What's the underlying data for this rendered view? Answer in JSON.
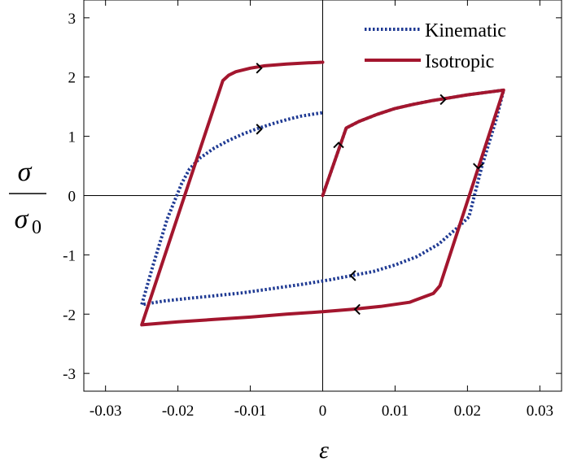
{
  "chart_data": {
    "type": "line",
    "title": "",
    "xlabel": "ε",
    "ylabel_numerator": "σ",
    "ylabel_denominator": "σ",
    "ylabel_denominator_subscript": "0",
    "xlim": [
      -0.033,
      0.033
    ],
    "ylim": [
      -3.3,
      3.3
    ],
    "xticks": [
      -0.03,
      -0.02,
      -0.01,
      0,
      0.01,
      0.02,
      0.03
    ],
    "xtick_labels": [
      "-0.03",
      "-0.02",
      "-0.01",
      "0",
      "0.01",
      "0.02",
      "0.03"
    ],
    "yticks": [
      -3,
      -2,
      -1,
      0,
      1,
      2,
      3
    ],
    "ytick_labels": [
      "-3",
      "-2",
      "-1",
      "0",
      "1",
      "2",
      "3"
    ],
    "grid": false,
    "zero_lines": true,
    "legend_position": "top-right",
    "series": [
      {
        "name": "Kinematic",
        "style": "dotted",
        "color": "#1f3a93",
        "x": [
          0,
          0.00325,
          0.005,
          0.0075,
          0.01,
          0.0125,
          0.015,
          0.0175,
          0.02,
          0.0225,
          0.025,
          0.024,
          0.022,
          0.0202,
          0.019,
          0.016,
          0.013,
          0.01,
          0.007,
          0.004,
          0.001,
          -0.003,
          -0.007,
          -0.011,
          -0.015,
          -0.019,
          -0.022,
          -0.025,
          -0.0235,
          -0.0215,
          -0.0195,
          -0.0184,
          -0.017,
          -0.015,
          -0.013,
          -0.011,
          -0.009,
          -0.007,
          -0.005,
          -0.003,
          -0.001,
          0
        ],
        "y": [
          0,
          1.14,
          1.25,
          1.37,
          1.47,
          1.54,
          1.6,
          1.65,
          1.7,
          1.74,
          1.78,
          1.3,
          0.5,
          -0.36,
          -0.5,
          -0.82,
          -1.03,
          -1.17,
          -1.28,
          -1.35,
          -1.42,
          -1.5,
          -1.57,
          -1.64,
          -1.69,
          -1.74,
          -1.78,
          -1.84,
          -1.2,
          -0.4,
          0.2,
          0.45,
          0.63,
          0.8,
          0.93,
          1.04,
          1.13,
          1.21,
          1.28,
          1.34,
          1.38,
          1.4
        ]
      },
      {
        "name": "Isotropic",
        "style": "solid",
        "color": "#a3162e",
        "x": [
          0,
          0.00325,
          0.005,
          0.0075,
          0.01,
          0.0125,
          0.015,
          0.0175,
          0.02,
          0.0225,
          0.025,
          0.0162,
          0.0153,
          0.012,
          0.008,
          0.004,
          0,
          -0.005,
          -0.01,
          -0.015,
          -0.02,
          -0.025,
          -0.0138,
          -0.013,
          -0.012,
          -0.01,
          -0.008,
          -0.005,
          -0.002,
          0
        ],
        "y": [
          0,
          1.14,
          1.25,
          1.37,
          1.47,
          1.54,
          1.6,
          1.65,
          1.7,
          1.74,
          1.78,
          -1.52,
          -1.65,
          -1.8,
          -1.87,
          -1.92,
          -1.96,
          -2.0,
          -2.05,
          -2.09,
          -2.13,
          -2.18,
          1.94,
          2.03,
          2.09,
          2.15,
          2.19,
          2.22,
          2.24,
          2.25
        ]
      }
    ],
    "arrows": [
      {
        "series": "Kinematic",
        "x": -0.0088,
        "y": 1.12,
        "direction": "right"
      },
      {
        "series": "Kinematic",
        "x": 0.0042,
        "y": -1.35,
        "direction": "left"
      },
      {
        "series": "Isotropic",
        "x": -0.0088,
        "y": 2.15,
        "direction": "right"
      },
      {
        "series": "Isotropic",
        "x": 0.0022,
        "y": 0.85,
        "direction": "up"
      },
      {
        "series": "Isotropic",
        "x": 0.0166,
        "y": 1.62,
        "direction": "right"
      },
      {
        "series": "Isotropic",
        "x": 0.0215,
        "y": 0.5,
        "direction": "down"
      },
      {
        "series": "Isotropic",
        "x": 0.0048,
        "y": -1.92,
        "direction": "left"
      }
    ]
  }
}
